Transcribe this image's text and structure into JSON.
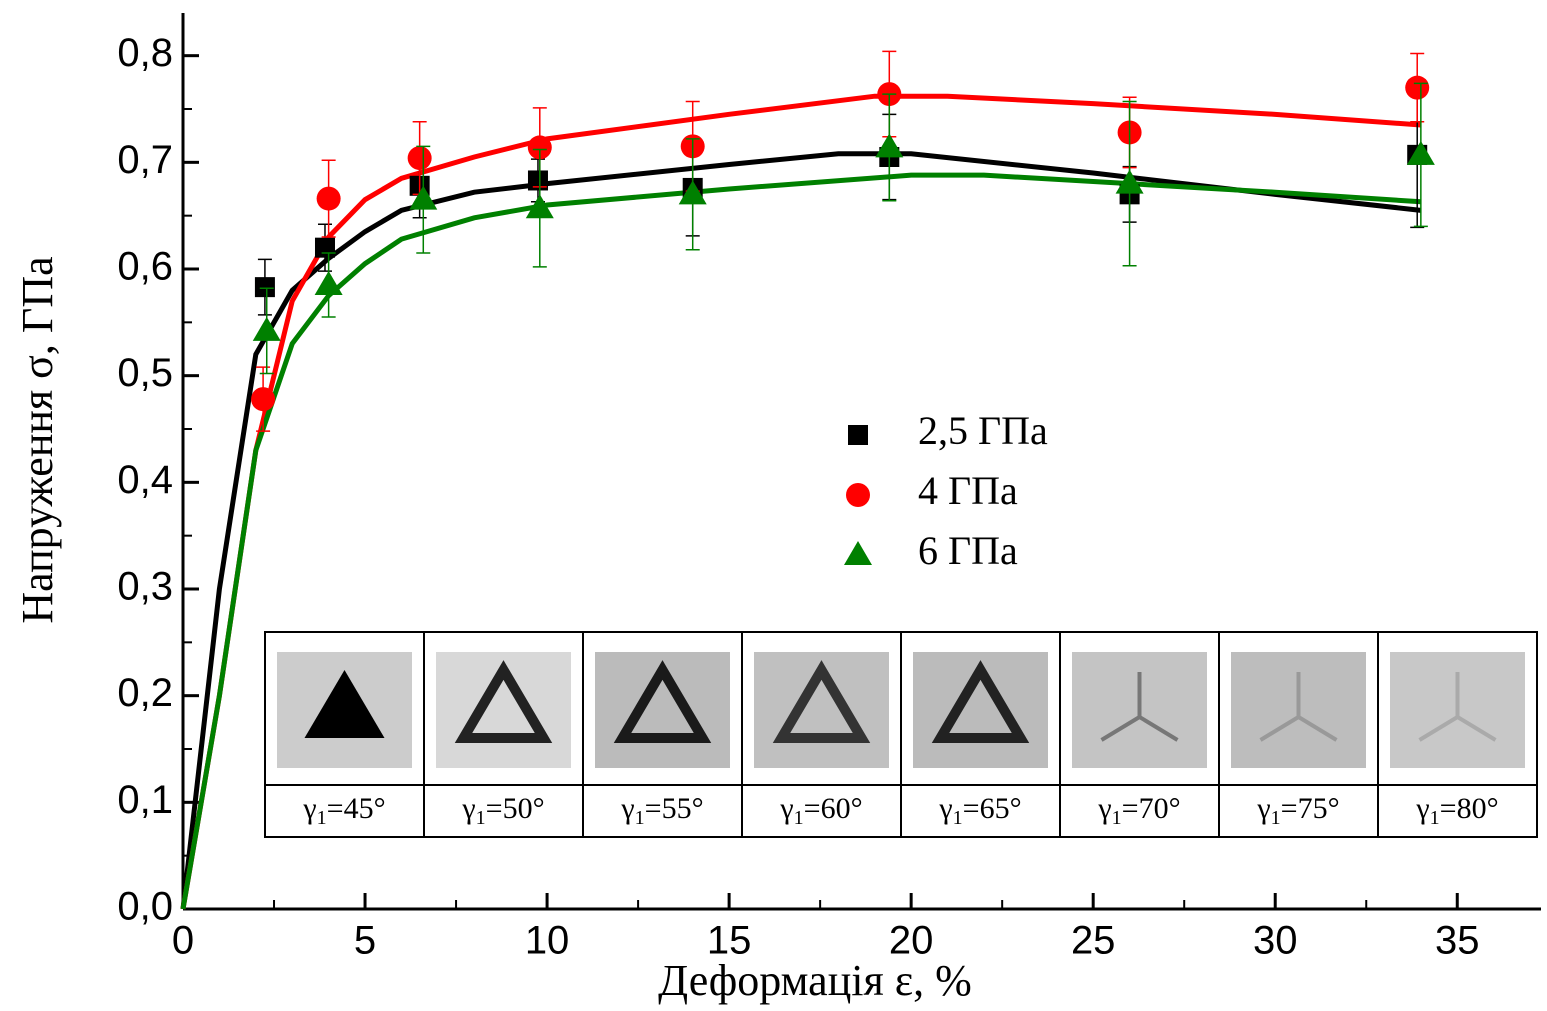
{
  "chart_data": {
    "type": "scatter",
    "xlabel": "Деформація ε, %",
    "ylabel": "Напруження σ, ГПа",
    "xlim": [
      0,
      37.3
    ],
    "ylim": [
      0,
      0.84
    ],
    "xticks": [
      0,
      5,
      10,
      15,
      20,
      25,
      30,
      35
    ],
    "yticks": [
      {
        "value": 0,
        "label": "0,0"
      },
      {
        "value": 0.1,
        "label": "0,1"
      },
      {
        "value": 0.2,
        "label": "0,2"
      },
      {
        "value": 0.3,
        "label": "0,3"
      },
      {
        "value": 0.4,
        "label": "0,4"
      },
      {
        "value": 0.5,
        "label": "0,5"
      },
      {
        "value": 0.6,
        "label": "0,6"
      },
      {
        "value": 0.7,
        "label": "0,7"
      },
      {
        "value": 0.8,
        "label": "0,8"
      }
    ],
    "legend": "center-right",
    "series": [
      {
        "name": "2,5 ГПа",
        "color": "#000000",
        "marker": "square",
        "x": [
          2.25,
          3.9,
          6.5,
          9.75,
          14,
          19.4,
          26,
          33.9
        ],
        "values": [
          0.583,
          0.62,
          0.678,
          0.683,
          0.676,
          0.705,
          0.67,
          0.707
        ],
        "errors": [
          0.026,
          0.022,
          0.03,
          0.02,
          0.045,
          0.04,
          0.026,
          0.068
        ],
        "fit_x": [
          0,
          1,
          2,
          3,
          4,
          5,
          6,
          8,
          10,
          15,
          18,
          20,
          25,
          30,
          34
        ],
        "fit_values": [
          0,
          0.3,
          0.52,
          0.58,
          0.61,
          0.635,
          0.655,
          0.672,
          0.68,
          0.698,
          0.708,
          0.708,
          0.69,
          0.67,
          0.655
        ]
      },
      {
        "name": " 4 ГПа",
        "color": "#ff0000",
        "marker": "circle",
        "x": [
          2.2,
          4.0,
          6.5,
          9.8,
          14,
          19.4,
          26,
          33.9
        ],
        "values": [
          0.478,
          0.666,
          0.704,
          0.714,
          0.715,
          0.764,
          0.728,
          0.77
        ],
        "errors": [
          0.03,
          0.036,
          0.034,
          0.037,
          0.042,
          0.04,
          0.033,
          0.032
        ],
        "fit_x": [
          0,
          1,
          2,
          3,
          4,
          5,
          6,
          8,
          10,
          15,
          19,
          21,
          25,
          30,
          34
        ],
        "fit_values": [
          0,
          0.2,
          0.43,
          0.57,
          0.63,
          0.665,
          0.685,
          0.705,
          0.722,
          0.745,
          0.762,
          0.762,
          0.755,
          0.745,
          0.735
        ]
      },
      {
        "name": " 6 ГПа",
        "color": "#008000",
        "marker": "triangle",
        "x": [
          2.3,
          4.0,
          6.6,
          9.8,
          14,
          19.4,
          26,
          34
        ],
        "values": [
          0.542,
          0.585,
          0.665,
          0.657,
          0.67,
          0.714,
          0.68,
          0.707
        ],
        "errors": [
          0.04,
          0.03,
          0.05,
          0.055,
          0.052,
          0.05,
          0.077,
          0.067
        ],
        "fit_x": [
          0,
          1,
          2,
          3,
          4,
          5,
          6,
          8,
          10,
          15,
          20,
          22,
          26,
          30,
          34
        ],
        "fit_values": [
          0,
          0.2,
          0.43,
          0.53,
          0.575,
          0.605,
          0.628,
          0.648,
          0.66,
          0.675,
          0.688,
          0.688,
          0.68,
          0.672,
          0.663
        ]
      }
    ],
    "inset": {
      "cells": [
        {
          "symbol": "γ",
          "sub": "1",
          "rest": "=45°"
        },
        {
          "symbol": "γ",
          "sub": "1",
          "rest": "=50°"
        },
        {
          "symbol": "γ",
          "sub": "1",
          "rest": "=55°"
        },
        {
          "symbol": "γ",
          "sub": "1",
          "rest": "=60°"
        },
        {
          "symbol": "γ",
          "sub": "1",
          "rest": "=65°"
        },
        {
          "symbol": "γ",
          "sub": "1",
          "rest": "=70°"
        },
        {
          "symbol": "γ",
          "sub": "1",
          "rest": "=75°"
        },
        {
          "symbol": "γ",
          "sub": "1",
          "rest": "=80°"
        }
      ]
    }
  }
}
